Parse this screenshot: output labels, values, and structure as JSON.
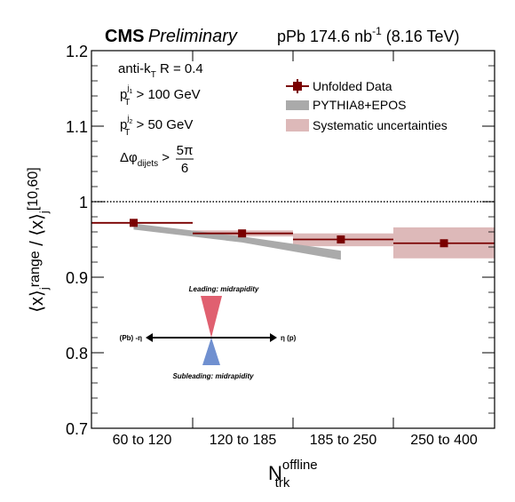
{
  "header": {
    "experiment": "CMS",
    "status": "Preliminary",
    "dataset_pre": "pPb 174.6 nb",
    "dataset_sup": "-1",
    "dataset_post": " (8.16 TeV)"
  },
  "annotations": {
    "jet_algo_pre": "anti-k",
    "jet_algo_sub": "T",
    "jet_algo_post": " R = 0.4",
    "lead_pt_p": "p",
    "lead_pt_sup": "j",
    "lead_pt_supsub": "1",
    "lead_pt_sub": "T",
    "lead_pt_post": " > 100 GeV",
    "sub_pt_p": "p",
    "sub_pt_sup": "j",
    "sub_pt_supsub": "2",
    "sub_pt_sub": "T",
    "sub_pt_post": " > 50 GeV",
    "dphi_pre": "Δφ",
    "dphi_sub": "dijets",
    "dphi_gt": " >",
    "dphi_num": "5π",
    "dphi_den": "6"
  },
  "inset": {
    "leading_caption": "Leading: midrapidity",
    "subleading_caption": "Subleading: midrapidity",
    "left_label": "(Pb) -η",
    "right_label": "η (p)",
    "leading_color": "#e06070",
    "subleading_color": "#7090d0"
  },
  "colors": {
    "data": "#7a0000",
    "pythia": "#aaaaaa",
    "systematic": "#ddb9b9"
  },
  "chart_data": {
    "type": "scatter",
    "categories": [
      "60 to 120",
      "120 to 185",
      "185 to 250",
      "250 to 400"
    ],
    "ylim": [
      0.7,
      1.2
    ],
    "yticks": [
      0.7,
      0.8,
      0.9,
      1,
      1.1,
      1.2
    ],
    "ytick_labels": [
      "0.7",
      "0.8",
      "0.9",
      "1",
      "1.1",
      "1.2"
    ],
    "reference_line": 1.0,
    "ylabel": {
      "main": "⟨x⟩",
      "sub1": "j",
      "range": "range",
      "slash": " / ",
      "main2": "⟨x⟩",
      "sub2": "j",
      "bracket": "[10,60]"
    },
    "xlabel": {
      "main": "N",
      "sup": "offline",
      "sub": "trk"
    },
    "legend_position": "top-right",
    "series": [
      {
        "name": "Unfolded Data",
        "marker_x": [
          85,
          152,
          216,
          325
        ],
        "x_low": [
          60,
          120,
          185,
          250
        ],
        "x_high": [
          120,
          185,
          250,
          400
        ],
        "values": [
          0.972,
          0.958,
          0.95,
          0.945
        ],
        "stat_err": [
          0.003,
          0.003,
          0.004,
          0.005
        ]
      },
      {
        "name": "PYTHIA8+EPOS",
        "x": [
          85,
          152,
          216
        ],
        "values": [
          0.967,
          0.95,
          0.929
        ],
        "band_half_width": [
          0.004,
          0.004,
          0.006
        ]
      },
      {
        "name": "Systematic uncertainties",
        "x_low": [
          60,
          120,
          185,
          250
        ],
        "x_high": [
          120,
          185,
          250,
          400
        ],
        "low": [
          0.971,
          0.954,
          0.941,
          0.925
        ],
        "high": [
          0.973,
          0.962,
          0.958,
          0.966
        ]
      }
    ]
  }
}
